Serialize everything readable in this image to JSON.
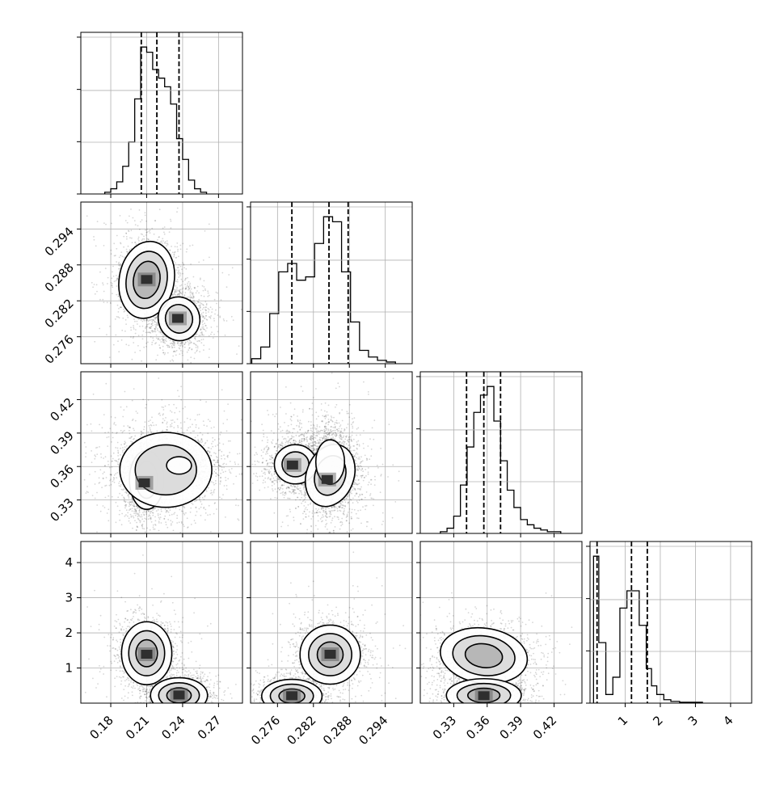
{
  "chart_data": {
    "type": "corner",
    "parameters": [
      {
        "range": [
          0.155,
          0.29
        ],
        "ticks": [
          "0.18",
          "0.21",
          "0.24",
          "0.27"
        ],
        "tick_values": [
          0.18,
          0.21,
          0.24,
          0.27
        ],
        "quantiles": [
          0.2055,
          0.2185,
          0.237
        ],
        "hist": {
          "edges": [
            0.175,
            0.18,
            0.185,
            0.19,
            0.195,
            0.2,
            0.205,
            0.21,
            0.215,
            0.22,
            0.225,
            0.23,
            0.235,
            0.24,
            0.245,
            0.25,
            0.255,
            0.26
          ],
          "counts": [
            1,
            3,
            7,
            16,
            30,
            55,
            85,
            82,
            72,
            67,
            62,
            52,
            32,
            20,
            8,
            3,
            1
          ]
        }
      },
      {
        "range": [
          0.2715,
          0.2985
        ],
        "ticks": [
          "0.276",
          "0.282",
          "0.288",
          "0.294"
        ],
        "tick_values": [
          0.276,
          0.282,
          0.288,
          0.294
        ],
        "quantiles": [
          0.2784,
          0.2846,
          0.2878
        ],
        "hist": {
          "edges": [
            0.2717,
            0.2732,
            0.2747,
            0.2762,
            0.2777,
            0.2792,
            0.2807,
            0.2822,
            0.2837,
            0.2852,
            0.2867,
            0.2882,
            0.2897,
            0.2912,
            0.2927,
            0.2942,
            0.2957
          ],
          "counts": [
            3,
            10,
            30,
            55,
            60,
            50,
            52,
            72,
            88,
            85,
            55,
            25,
            8,
            4,
            2,
            1
          ]
        }
      },
      {
        "range": [
          0.3,
          0.445
        ],
        "ticks": [
          "0.33",
          "0.36",
          "0.39",
          "0.42"
        ],
        "tick_values": [
          0.33,
          0.36,
          0.39,
          0.42
        ],
        "quantiles": [
          0.3415,
          0.357,
          0.372
        ],
        "hist": {
          "edges": [
            0.318,
            0.324,
            0.33,
            0.336,
            0.342,
            0.348,
            0.354,
            0.36,
            0.366,
            0.372,
            0.378,
            0.384,
            0.39,
            0.396,
            0.402,
            0.408,
            0.414,
            0.42,
            0.426
          ],
          "counts": [
            1,
            3,
            10,
            28,
            50,
            70,
            80,
            85,
            65,
            42,
            25,
            15,
            8,
            5,
            3,
            2,
            1,
            1
          ]
        }
      },
      {
        "range": [
          0.0,
          4.6
        ],
        "ticks": [
          "1",
          "2",
          "3",
          "4"
        ],
        "tick_values": [
          1,
          2,
          3,
          4
        ],
        "quantiles": [
          0.2,
          1.18,
          1.63
        ],
        "hist": {
          "edges": [
            0.1,
            0.25,
            0.45,
            0.65,
            0.85,
            1.05,
            1.2,
            1.4,
            1.6,
            1.75,
            1.9,
            2.1,
            2.3,
            2.55,
            3.2
          ],
          "counts": [
            85,
            35,
            5,
            15,
            55,
            65,
            65,
            45,
            20,
            10,
            5,
            2,
            1,
            0.5
          ]
        }
      }
    ],
    "pairs": [
      {
        "row": 1,
        "col": 0,
        "modes": [
          {
            "x": 0.21,
            "y": 0.2855,
            "sx": 0.0085,
            "sy": 0.0024,
            "rot": -10,
            "levels": [
              1.3,
              2.0,
              2.7
            ]
          },
          {
            "x": 0.237,
            "y": 0.279,
            "sx": 0.0075,
            "sy": 0.0016,
            "rot": 20,
            "levels": [
              1.5,
              2.3
            ]
          }
        ],
        "dark_cells": [
          {
            "x": 0.21,
            "y": 0.2855
          },
          {
            "x": 0.236,
            "y": 0.279
          }
        ]
      },
      {
        "row": 2,
        "col": 0,
        "modes": [
          {
            "x": 0.21,
            "y": 0.348,
            "sx": 0.006,
            "sy": 0.011,
            "rot": 0,
            "levels": [
              1.5,
              2.4
            ]
          },
          {
            "x": 0.226,
            "y": 0.357,
            "sx": 0.016,
            "sy": 0.014,
            "rot": 0,
            "levels": [
              1.6,
              2.4
            ]
          },
          {
            "x": 0.237,
            "y": 0.361,
            "sx": 0.008,
            "sy": 0.006,
            "rot": 0,
            "levels": [
              1.3
            ]
          }
        ],
        "dark_cells": [
          {
            "x": 0.208,
            "y": 0.345
          }
        ]
      },
      {
        "row": 2,
        "col": 1,
        "modes": [
          {
            "x": 0.279,
            "y": 0.362,
            "sx": 0.0016,
            "sy": 0.008,
            "rot": 0,
            "levels": [
              1.4,
              2.2
            ]
          },
          {
            "x": 0.2848,
            "y": 0.352,
            "sx": 0.0018,
            "sy": 0.013,
            "rot": -20,
            "levels": [
              1.4,
              2.2
            ]
          },
          {
            "x": 0.2848,
            "y": 0.364,
            "sx": 0.0012,
            "sy": 0.01,
            "rot": 0,
            "levels": [
              2.0
            ]
          }
        ],
        "dark_cells": [
          {
            "x": 0.2843,
            "y": 0.348
          },
          {
            "x": 0.2785,
            "y": 0.361
          }
        ]
      },
      {
        "row": 3,
        "col": 0,
        "modes": [
          {
            "x": 0.21,
            "y": 1.42,
            "sx": 0.0075,
            "sy": 0.32,
            "rot": 0,
            "levels": [
              1.2,
              2.0,
              2.8
            ]
          },
          {
            "x": 0.237,
            "y": 0.22,
            "sx": 0.0085,
            "sy": 0.18,
            "rot": 0,
            "levels": [
              1.2,
              2.0,
              2.8
            ]
          }
        ],
        "dark_cells": [
          {
            "x": 0.21,
            "y": 1.38
          },
          {
            "x": 0.237,
            "y": 0.22
          }
        ]
      },
      {
        "row": 3,
        "col": 1,
        "modes": [
          {
            "x": 0.2848,
            "y": 1.38,
            "sx": 0.0018,
            "sy": 0.3,
            "rot": 0,
            "levels": [
              1.2,
              2.0,
              2.8
            ]
          },
          {
            "x": 0.2784,
            "y": 0.2,
            "sx": 0.0018,
            "sy": 0.17,
            "rot": 0,
            "levels": [
              1.2,
              2.0,
              2.8
            ]
          }
        ],
        "dark_cells": [
          {
            "x": 0.2784,
            "y": 0.2
          },
          {
            "x": 0.2848,
            "y": 1.38
          }
        ]
      },
      {
        "row": 3,
        "col": 2,
        "modes": [
          {
            "x": 0.357,
            "y": 1.35,
            "sx": 0.014,
            "sy": 0.28,
            "rot": -8,
            "levels": [
              1.2,
              2.0,
              2.8
            ]
          },
          {
            "x": 0.357,
            "y": 0.22,
            "sx": 0.012,
            "sy": 0.17,
            "rot": 0,
            "levels": [
              1.2,
              2.0,
              2.8
            ]
          }
        ],
        "dark_cells": [
          {
            "x": 0.357,
            "y": 0.2
          }
        ]
      }
    ],
    "grid": true,
    "xlabel": "",
    "ylabel": ""
  }
}
